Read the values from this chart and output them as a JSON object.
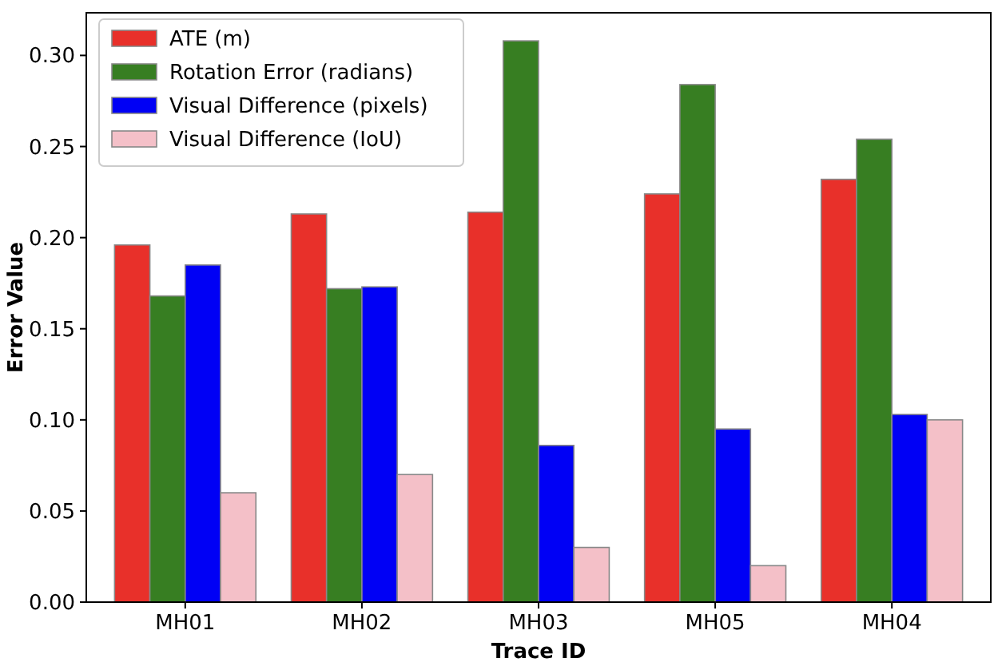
{
  "chart_data": {
    "type": "bar",
    "xlabel": "Trace ID",
    "ylabel": "Error Value",
    "categories": [
      "MH01",
      "MH02",
      "MH03",
      "MH05",
      "MH04"
    ],
    "series": [
      {
        "name": "ATE (m)",
        "color": "#e8302a",
        "values": [
          0.196,
          0.213,
          0.214,
          0.224,
          0.232
        ]
      },
      {
        "name": "Rotation Error (radians)",
        "color": "#377e22",
        "values": [
          0.168,
          0.172,
          0.308,
          0.284,
          0.254
        ]
      },
      {
        "name": "Visual Difference (pixels)",
        "color": "#0000f5",
        "values": [
          0.185,
          0.173,
          0.086,
          0.095,
          0.103
        ]
      },
      {
        "name": "Visual Difference (IoU)",
        "color": "#f4c0c8",
        "values": [
          0.06,
          0.07,
          0.03,
          0.02,
          0.1
        ]
      }
    ],
    "ylim": [
      0,
      0.3234
    ],
    "yticks": [
      {
        "value": 0,
        "label": "0.00"
      },
      {
        "value": 0.05,
        "label": "0.05"
      },
      {
        "value": 0.1,
        "label": "0.10"
      },
      {
        "value": 0.15,
        "label": "0.15"
      },
      {
        "value": 0.2,
        "label": "0.20"
      },
      {
        "value": 0.25,
        "label": "0.25"
      },
      {
        "value": 0.3,
        "label": "0.30"
      }
    ],
    "legend": "top left",
    "grid": false
  }
}
